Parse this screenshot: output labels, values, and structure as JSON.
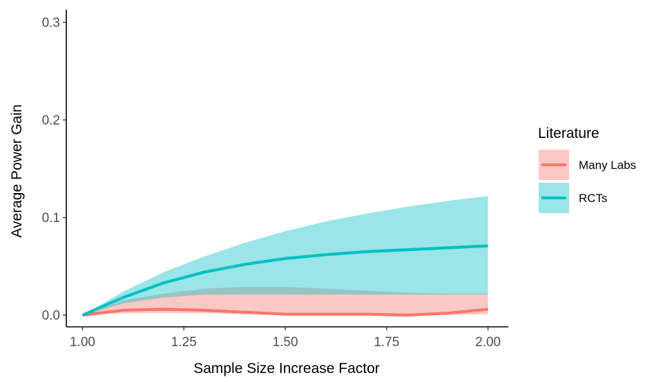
{
  "chart_data": {
    "type": "area",
    "xlabel": "Sample Size Increase Factor",
    "ylabel": "Average Power Gain",
    "xlim": [
      0.96,
      2.05
    ],
    "ylim": [
      -0.012,
      0.313
    ],
    "x_ticks": [
      1.0,
      1.25,
      1.5,
      1.75,
      2.0
    ],
    "x_tick_labels": [
      "1.00",
      "1.25",
      "1.50",
      "1.75",
      "2.00"
    ],
    "y_ticks": [
      0.0,
      0.1,
      0.2,
      0.3
    ],
    "y_tick_labels": [
      "0.0",
      "0.1",
      "0.2",
      "0.3"
    ],
    "grid": false,
    "legend": {
      "title": "Literature",
      "position": "right"
    },
    "series": [
      {
        "name": "Many Labs",
        "color": "#F8766D",
        "fill": "#F8766D",
        "x": [
          1.0,
          1.1,
          1.2,
          1.3,
          1.4,
          1.5,
          1.6,
          1.7,
          1.8,
          1.9,
          2.0
        ],
        "mean": [
          0.0,
          0.005,
          0.006,
          0.005,
          0.003,
          0.001,
          0.001,
          0.001,
          0.0,
          0.002,
          0.006
        ],
        "lower": [
          0.0,
          0.002,
          0.002,
          0.002,
          0.001,
          0.001,
          0.0,
          0.0,
          0.0,
          0.0,
          0.001
        ],
        "upper": [
          0.0,
          0.015,
          0.022,
          0.027,
          0.029,
          0.029,
          0.027,
          0.025,
          0.023,
          0.022,
          0.022
        ]
      },
      {
        "name": "RCTs",
        "color": "#00BFC4",
        "fill": "#00BFC4",
        "x": [
          1.0,
          1.1,
          1.2,
          1.3,
          1.4,
          1.5,
          1.6,
          1.7,
          1.8,
          1.9,
          2.0
        ],
        "mean": [
          0.0,
          0.018,
          0.033,
          0.044,
          0.052,
          0.058,
          0.062,
          0.065,
          0.067,
          0.069,
          0.071
        ],
        "lower": [
          0.0,
          0.012,
          0.018,
          0.021,
          0.021,
          0.021,
          0.021,
          0.021,
          0.021,
          0.021,
          0.021
        ],
        "upper": [
          0.0,
          0.024,
          0.044,
          0.06,
          0.074,
          0.086,
          0.096,
          0.104,
          0.111,
          0.117,
          0.122
        ]
      }
    ]
  }
}
